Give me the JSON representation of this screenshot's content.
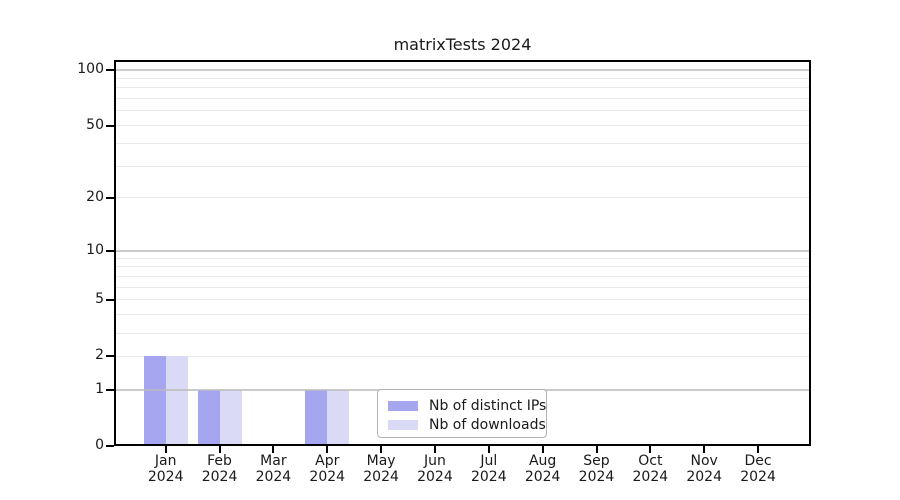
{
  "title": "matrixTests 2024",
  "chart_data": {
    "type": "bar",
    "title": "matrixTests 2024",
    "categories": [
      "Jan",
      "Feb",
      "Mar",
      "Apr",
      "May",
      "Jun",
      "Jul",
      "Aug",
      "Sep",
      "Oct",
      "Nov",
      "Dec"
    ],
    "x_year": "2024",
    "series": [
      {
        "name": "Nb of distinct IPs",
        "color": "#a6a6f0",
        "values": [
          2,
          1,
          0,
          1,
          0,
          0,
          0,
          0,
          0,
          0,
          0,
          0
        ]
      },
      {
        "name": "Nb of downloads",
        "color": "#dadaf7",
        "values": [
          2,
          1,
          0,
          1,
          0,
          0,
          0,
          0,
          0,
          0,
          0,
          0
        ]
      }
    ],
    "xlabel": "",
    "ylabel": "",
    "yscale": "log1p",
    "ylim": [
      0,
      113
    ],
    "ytick_values": [
      0,
      1,
      2,
      5,
      10,
      20,
      50,
      100
    ],
    "grid_major_values": [
      1,
      10,
      100
    ],
    "grid_minor_values": [
      2,
      3,
      4,
      5,
      6,
      7,
      8,
      9,
      20,
      30,
      40,
      50,
      60,
      70,
      80,
      90
    ],
    "grid": "on",
    "legend_position": "bottom-center"
  },
  "legend": {
    "items": [
      {
        "label": "Nb of distinct IPs",
        "color": "#a6a6f0"
      },
      {
        "label": "Nb of downloads",
        "color": "#dadaf7"
      }
    ]
  },
  "colors": {
    "background": "#ffffff",
    "axis": "#000000",
    "grid_major": "#b9b9b9",
    "grid_minor": "#e9e9e9",
    "text": "#1a1a1a",
    "series_dark": "#a6a6f0",
    "series_light": "#dadaf7"
  }
}
